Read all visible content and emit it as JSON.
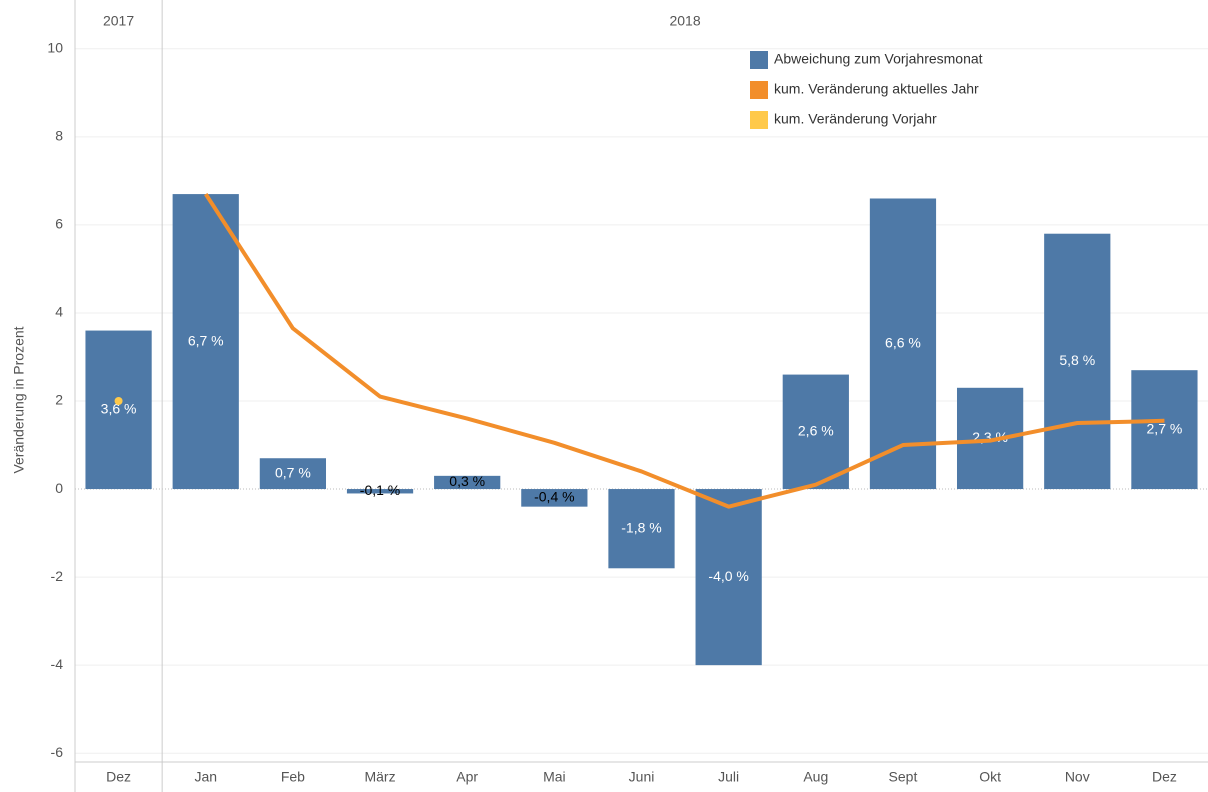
{
  "chart_data": {
    "type": "bar-line",
    "y_label": "Veränderung in Prozent",
    "categories": [
      "Dez",
      "Jan",
      "Feb",
      "März",
      "Apr",
      "Mai",
      "Juni",
      "Juli",
      "Aug",
      "Sept",
      "Okt",
      "Nov",
      "Dez"
    ],
    "category_years": [
      "2017",
      "2018",
      "2018",
      "2018",
      "2018",
      "2018",
      "2018",
      "2018",
      "2018",
      "2018",
      "2018",
      "2018",
      "2018"
    ],
    "series": [
      {
        "name": "Abweichung zum Vorjahresmonat",
        "type": "bar",
        "color": "#4e79a7",
        "values": [
          3.6,
          6.7,
          0.7,
          -0.1,
          0.3,
          -0.4,
          -1.8,
          -4.0,
          2.6,
          6.6,
          2.3,
          5.8,
          2.7
        ],
        "value_labels": [
          "3,6 %",
          "6,7 %",
          "0,7 %",
          "-0,1 %",
          "0,3 %",
          "-0,4 %",
          "-1,8 %",
          "-4,0 %",
          "2,6 %",
          "6,6 %",
          "2,3 %",
          "5,8 %",
          "2,7 %"
        ]
      },
      {
        "name": "kum. Veränderung aktuelles Jahr",
        "type": "line",
        "color": "#f28e2b",
        "values": [
          null,
          6.7,
          3.65,
          2.1,
          1.6,
          1.05,
          0.4,
          -0.4,
          0.1,
          1.0,
          1.1,
          1.5,
          1.55
        ]
      },
      {
        "name": "kum. Veränderung Vorjahr",
        "type": "line",
        "color": "#ffc94a",
        "values": [
          2.0,
          null,
          null,
          null,
          null,
          null,
          null,
          null,
          null,
          null,
          null,
          null,
          null
        ]
      }
    ],
    "ylim": [
      -6.2,
      10.2
    ],
    "yticks": [
      -6,
      -4,
      -2,
      0,
      2,
      4,
      6,
      8,
      10
    ],
    "grid": true,
    "legend": "top-right"
  }
}
